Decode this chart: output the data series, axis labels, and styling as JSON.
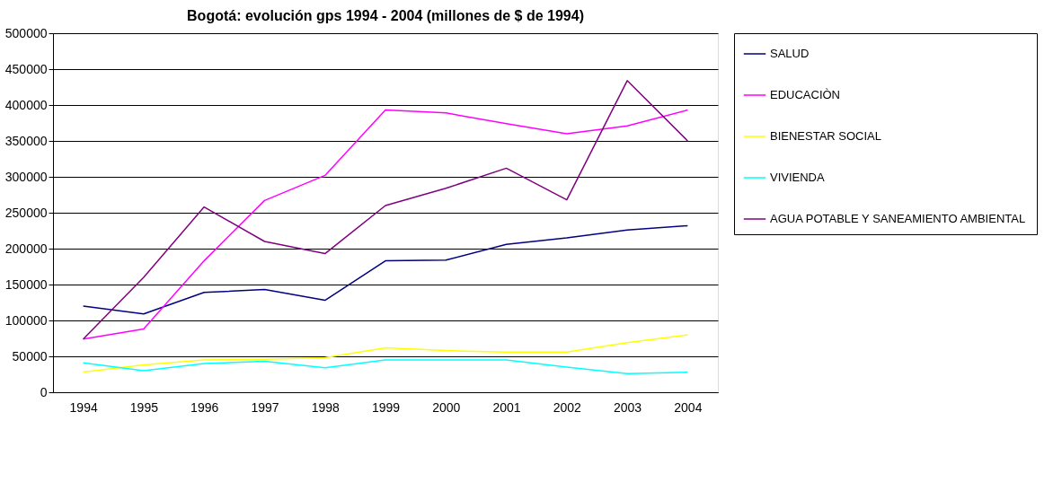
{
  "chart_data": {
    "type": "line",
    "title": "Bogotá: evolución gps 1994 - 2004 (millones de $ de 1994)",
    "categories": [
      "1994",
      "1995",
      "1996",
      "1997",
      "1998",
      "1999",
      "2000",
      "2001",
      "2002",
      "2003",
      "2004"
    ],
    "series": [
      {
        "name": "SALUD",
        "color": "#000080",
        "values": [
          120000,
          109000,
          139000,
          143000,
          128000,
          183000,
          184000,
          206000,
          215000,
          226000,
          232000
        ]
      },
      {
        "name": "EDUCACIÒN",
        "color": "#ff00ff",
        "values": [
          74000,
          88000,
          183000,
          267000,
          302000,
          393000,
          389000,
          374000,
          360000,
          371000,
          393000
        ]
      },
      {
        "name": "BIENESTAR SOCIAL",
        "color": "#ffff00",
        "values": [
          28000,
          38000,
          45000,
          46000,
          48000,
          62000,
          58000,
          56000,
          56000,
          69000,
          80000
        ]
      },
      {
        "name": "VIVIENDA",
        "color": "#00ffff",
        "values": [
          41000,
          30000,
          40000,
          43000,
          34000,
          45000,
          45000,
          45000,
          35000,
          26000,
          28000
        ]
      },
      {
        "name": "AGUA POTABLE Y SANEAMIENTO AMBIENTAL",
        "color": "#800080",
        "values": [
          74000,
          160000,
          258000,
          210000,
          193000,
          260000,
          284000,
          312000,
          268000,
          434000,
          350000
        ]
      }
    ],
    "ylim": [
      0,
      500000
    ],
    "yticks": [
      0,
      50000,
      100000,
      150000,
      200000,
      250000,
      300000,
      350000,
      400000,
      450000,
      500000
    ],
    "grid": "y",
    "legend": "right",
    "marker": "none",
    "line_style": "solid"
  }
}
